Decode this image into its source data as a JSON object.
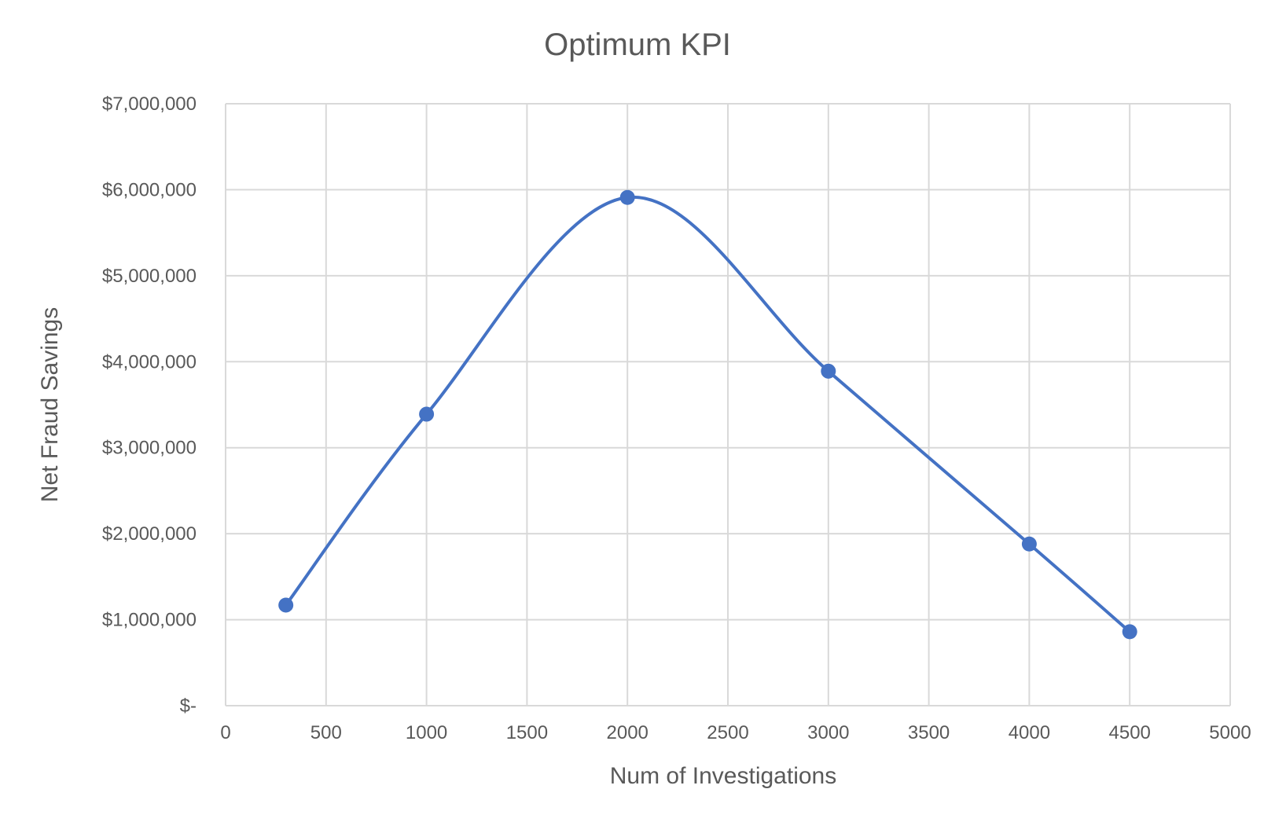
{
  "chart_data": {
    "type": "line",
    "title": "Optimum KPI",
    "xlabel": "Num of Investigations",
    "ylabel": "Net Fraud Savings",
    "xlim": [
      0,
      5000
    ],
    "ylim": [
      0,
      7000000
    ],
    "x_ticks": [
      "0",
      "500",
      "1000",
      "1500",
      "2000",
      "2500",
      "3000",
      "3500",
      "4000",
      "4500",
      "5000"
    ],
    "y_ticks": [
      "$-",
      "$1,000,000",
      "$2,000,000",
      "$3,000,000",
      "$4,000,000",
      "$5,000,000",
      "$6,000,000",
      "$7,000,000"
    ],
    "grid": true,
    "smooth": true,
    "series": [
      {
        "color": "#4472c4",
        "points": [
          {
            "x": 300,
            "y": 1170000
          },
          {
            "x": 1000,
            "y": 3390000
          },
          {
            "x": 2000,
            "y": 5910000
          },
          {
            "x": 3000,
            "y": 3890000
          },
          {
            "x": 4000,
            "y": 1880000
          },
          {
            "x": 4500,
            "y": 860000
          }
        ]
      }
    ]
  }
}
